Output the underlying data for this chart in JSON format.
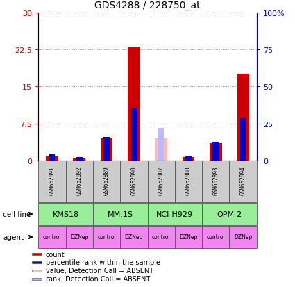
{
  "title": "GDS4288 / 228750_at",
  "samples": [
    "GSM662891",
    "GSM662892",
    "GSM662889",
    "GSM662890",
    "GSM662887",
    "GSM662888",
    "GSM662893",
    "GSM662894"
  ],
  "count_values": [
    0.8,
    0.5,
    4.5,
    23.0,
    0.0,
    0.7,
    3.5,
    17.5
  ],
  "rank_values": [
    4.0,
    2.5,
    16.0,
    35.0,
    0.0,
    3.0,
    12.5,
    28.5
  ],
  "absent_value": [
    0.0,
    0.0,
    0.0,
    0.0,
    4.5,
    0.0,
    0.0,
    0.0
  ],
  "absent_rank": [
    0.0,
    0.0,
    0.0,
    0.0,
    22.0,
    0.0,
    0.0,
    0.0
  ],
  "is_absent": [
    false,
    false,
    false,
    false,
    true,
    false,
    false,
    false
  ],
  "cell_lines": [
    {
      "label": "KMS18",
      "start": 0,
      "end": 2
    },
    {
      "label": "MM.1S",
      "start": 2,
      "end": 4
    },
    {
      "label": "NCI-H929",
      "start": 4,
      "end": 6
    },
    {
      "label": "OPM-2",
      "start": 6,
      "end": 8
    }
  ],
  "agents": [
    "control",
    "DZNep",
    "control",
    "DZNep",
    "control",
    "DZNep",
    "control",
    "DZNep"
  ],
  "ylim_left": [
    0,
    30
  ],
  "ylim_right": [
    0,
    100
  ],
  "yticks_left": [
    0,
    7.5,
    15,
    22.5,
    30
  ],
  "yticks_right": [
    0,
    25,
    50,
    75,
    100
  ],
  "ytick_labels_left": [
    "0",
    "7.5",
    "15",
    "22.5",
    "30"
  ],
  "ytick_labels_right": [
    "0",
    "25",
    "50",
    "75",
    "100%"
  ],
  "bar_color_count": "#cc0000",
  "bar_color_rank": "#0000cc",
  "bar_color_absent_value": "#ffbbbb",
  "bar_color_absent_rank": "#bbbbff",
  "cell_line_bg": "#99ee99",
  "cell_line_border": "#555555",
  "agent_bg_control": "#ee88ee",
  "agent_bg_dznep": "#dd44dd",
  "agent_border": "#555555",
  "sample_bg": "#cccccc",
  "sample_border": "#555555",
  "left_axis_color": "#cc0000",
  "right_axis_color": "#0000cc",
  "legend_items": [
    {
      "label": "count",
      "color": "#cc0000"
    },
    {
      "label": "percentile rank within the sample",
      "color": "#0000cc"
    },
    {
      "label": "value, Detection Call = ABSENT",
      "color": "#ffbbbb"
    },
    {
      "label": "rank, Detection Call = ABSENT",
      "color": "#bbbbff"
    }
  ]
}
